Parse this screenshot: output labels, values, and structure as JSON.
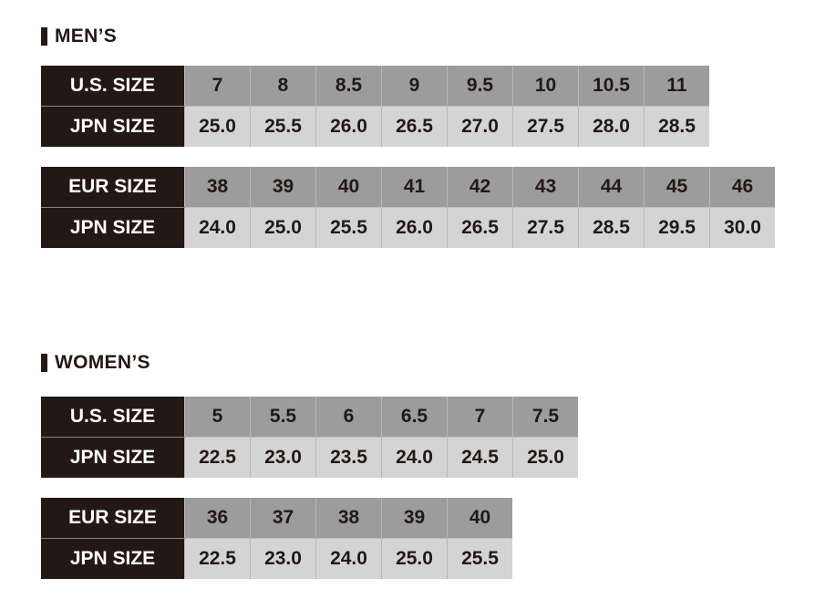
{
  "mens": {
    "heading": "MEN’S",
    "tables": [
      {
        "top_label": "U.S. SIZE",
        "bottom_label": "JPN SIZE",
        "top": [
          "7",
          "8",
          "8.5",
          "9",
          "9.5",
          "10",
          "10.5",
          "11"
        ],
        "bottom": [
          "25.0",
          "25.5",
          "26.0",
          "26.5",
          "27.0",
          "27.5",
          "28.0",
          "28.5"
        ]
      },
      {
        "top_label": "EUR SIZE",
        "bottom_label": "JPN SIZE",
        "top": [
          "38",
          "39",
          "40",
          "41",
          "42",
          "43",
          "44",
          "45",
          "46"
        ],
        "bottom": [
          "24.0",
          "25.0",
          "25.5",
          "26.0",
          "26.5",
          "27.5",
          "28.5",
          "29.5",
          "30.0"
        ]
      }
    ]
  },
  "womens": {
    "heading": "WOMEN’S",
    "tables": [
      {
        "top_label": "U.S. SIZE",
        "bottom_label": "JPN SIZE",
        "top": [
          "5",
          "5.5",
          "6",
          "6.5",
          "7",
          "7.5"
        ],
        "bottom": [
          "22.5",
          "23.0",
          "23.5",
          "24.0",
          "24.5",
          "25.0"
        ]
      },
      {
        "top_label": "EUR SIZE",
        "bottom_label": "JPN SIZE",
        "top": [
          "36",
          "37",
          "38",
          "39",
          "40"
        ],
        "bottom": [
          "22.5",
          "23.0",
          "24.0",
          "25.0",
          "25.5"
        ]
      }
    ]
  },
  "colors": {
    "label_bg": "#231815",
    "top_row": "#9c9c9c",
    "bottom_row": "#d4d4d4"
  }
}
